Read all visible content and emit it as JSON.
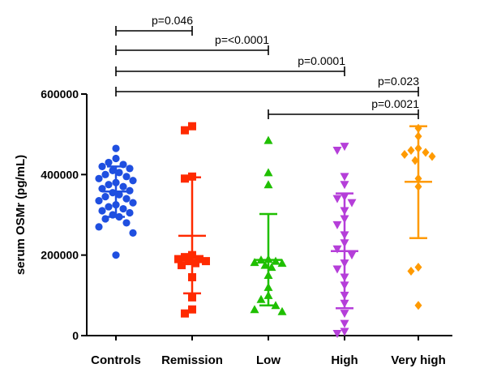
{
  "chart_data": {
    "type": "scatter",
    "title": "",
    "xlabel": "",
    "ylabel": "serum OSMr (pg/mL)",
    "ylim": [
      0,
      600000
    ],
    "yticks": [
      0,
      200000,
      400000,
      600000
    ],
    "ytick_labels": [
      "0",
      "200000",
      "400000",
      "600000"
    ],
    "grid": false,
    "categories": [
      "Controls",
      "Remission",
      "Low",
      "High",
      "Very high"
    ],
    "series": [
      {
        "category": "Controls",
        "marker": "circle",
        "color": "#1f4fe0",
        "mean": 358000,
        "sd_low": 295000,
        "sd_high": 420000,
        "values": [
          465000,
          440000,
          430000,
          425000,
          420000,
          415000,
          410000,
          405000,
          400000,
          395000,
          390000,
          385000,
          380000,
          375000,
          370000,
          365000,
          360000,
          355000,
          350000,
          345000,
          340000,
          335000,
          330000,
          325000,
          320000,
          315000,
          310000,
          305000,
          300000,
          295000,
          290000,
          280000,
          270000,
          255000,
          200000
        ]
      },
      {
        "category": "Remission",
        "marker": "square",
        "color": "#ff2a00",
        "mean": 248000,
        "sd_low": 105000,
        "sd_high": 393000,
        "values": [
          520000,
          510000,
          395000,
          390000,
          200000,
          195000,
          190000,
          190000,
          185000,
          185000,
          180000,
          175000,
          145000,
          95000,
          65000,
          55000
        ]
      },
      {
        "category": "Low",
        "marker": "triangle-up",
        "color": "#1fbf00",
        "mean": 188000,
        "sd_low": 75000,
        "sd_high": 302000,
        "values": [
          485000,
          405000,
          375000,
          190000,
          188000,
          185000,
          182000,
          180000,
          175000,
          170000,
          150000,
          120000,
          100000,
          90000,
          75000,
          65000,
          60000
        ]
      },
      {
        "category": "High",
        "marker": "triangle-down",
        "color": "#b53ed9",
        "mean": 210000,
        "sd_low": 68000,
        "sd_high": 353000,
        "values": [
          470000,
          460000,
          395000,
          375000,
          345000,
          340000,
          330000,
          310000,
          290000,
          275000,
          250000,
          230000,
          215000,
          200000,
          180000,
          165000,
          145000,
          125000,
          100000,
          80000,
          55000,
          30000,
          10000,
          5000
        ]
      },
      {
        "category": "Very high",
        "marker": "diamond",
        "color": "#ff9a00",
        "mean": 382000,
        "sd_low": 242000,
        "sd_high": 520000,
        "values": [
          515000,
          495000,
          465000,
          460000,
          455000,
          450000,
          445000,
          435000,
          390000,
          370000,
          170000,
          160000,
          75000
        ]
      }
    ],
    "annotations": [
      {
        "label": "p=0.046",
        "from": "Controls",
        "to": "Remission"
      },
      {
        "label": "p=<0.0001",
        "from": "Controls",
        "to": "Low"
      },
      {
        "label": "p=0.0001",
        "from": "Controls",
        "to": "High"
      },
      {
        "label": "p=0.023",
        "from": "Controls",
        "to": "Very high"
      },
      {
        "label": "p=0.0021",
        "from": "Low",
        "to": "Very high"
      }
    ]
  }
}
